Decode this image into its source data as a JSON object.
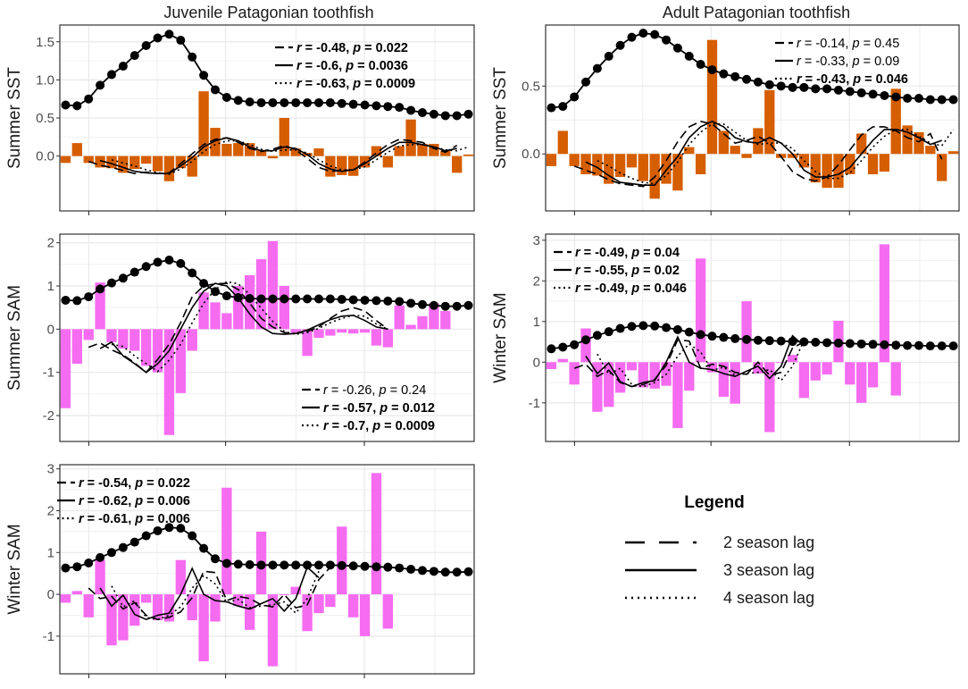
{
  "column_titles": [
    "Juvenile Patagonian toothfish",
    "Adult Patagonian toothfish"
  ],
  "colors": {
    "sst_bar": "#D55E00",
    "sam_bar": "#F56CF0",
    "line": "#000000",
    "grid": "#EBEBEB",
    "panel_border": "#333333"
  },
  "legend": {
    "title": "Legend",
    "items": [
      {
        "label": "2 season lag",
        "style": "dashed"
      },
      {
        "label": "3 season lag",
        "style": "solid"
      },
      {
        "label": "4 season lag",
        "style": "dotted"
      }
    ]
  },
  "chart_data": [
    {
      "id": "p1",
      "type": "bar+line",
      "column": "Juvenile Patagonian toothfish",
      "ylabel": "Summer SST",
      "ylim": [
        -0.72,
        1.72
      ],
      "yticks": [
        -0.0,
        0.5,
        1.0,
        1.5
      ],
      "ytick_labels": [
        "0.0",
        "0.5",
        "1.0",
        "1.5"
      ],
      "bar_color": "#D55E00",
      "bars": [
        -0.09,
        0.17,
        -0.09,
        -0.15,
        -0.16,
        -0.22,
        -0.17,
        -0.1,
        -0.2,
        -0.33,
        -0.16,
        -0.27,
        0.85,
        0.37,
        0.16,
        0.17,
        0.17,
        0.08,
        -0.03,
        0.5,
        0.1,
        0.04,
        0.1,
        -0.27,
        -0.25,
        -0.26,
        -0.15,
        0.13,
        -0.15,
        0.13,
        0.48,
        0.16,
        0.16,
        0.07,
        -0.22,
        0.02
      ],
      "population": [
        0.67,
        0.66,
        0.75,
        0.93,
        1.07,
        1.18,
        1.32,
        1.45,
        1.55,
        1.6,
        1.52,
        1.3,
        1.06,
        0.87,
        0.77,
        0.73,
        0.71,
        0.7,
        0.7,
        0.7,
        0.7,
        0.7,
        0.7,
        0.7,
        0.69,
        0.68,
        0.67,
        0.66,
        0.65,
        0.64,
        0.6,
        0.57,
        0.55,
        0.53,
        0.53,
        0.55
      ],
      "lag2": [
        null,
        null,
        -0.07,
        -0.12,
        -0.15,
        -0.19,
        -0.23,
        -0.21,
        -0.23,
        -0.22,
        -0.1,
        0.03,
        0.15,
        0.22,
        0.24,
        0.18,
        0.1,
        0.06,
        0.09,
        0.14,
        0.08,
        -0.03,
        -0.15,
        -0.2,
        -0.19,
        -0.18,
        -0.08,
        0.04,
        0.15,
        0.22,
        0.2,
        0.18,
        0.1,
        0.05,
        0.14,
        null
      ],
      "lag3": [
        null,
        null,
        null,
        -0.06,
        -0.1,
        -0.15,
        -0.2,
        -0.22,
        -0.23,
        -0.23,
        -0.13,
        -0.02,
        0.12,
        0.2,
        0.24,
        0.2,
        0.12,
        0.07,
        0.07,
        0.12,
        0.1,
        0.02,
        -0.1,
        -0.17,
        -0.2,
        -0.18,
        -0.1,
        0.0,
        0.1,
        0.18,
        0.18,
        0.15,
        0.12,
        0.07,
        0.1,
        null
      ],
      "lag4": [
        null,
        null,
        null,
        null,
        -0.05,
        -0.09,
        -0.13,
        -0.18,
        -0.22,
        -0.24,
        -0.17,
        -0.07,
        0.06,
        0.15,
        0.2,
        0.2,
        0.15,
        0.09,
        0.06,
        0.08,
        0.08,
        0.04,
        -0.05,
        -0.13,
        -0.18,
        -0.18,
        -0.14,
        -0.05,
        0.05,
        0.13,
        0.15,
        0.15,
        0.12,
        0.08,
        0.07,
        0.12
      ],
      "annotations": [
        {
          "pos": "top-right",
          "lines": [
            {
              "r": "-0.48",
              "p": "0.022",
              "bold": true
            },
            {
              "r": "-0.6",
              "p": "0.0036",
              "bold": true
            },
            {
              "r": "-0.63",
              "p": "0.0009",
              "bold": true
            }
          ]
        }
      ]
    },
    {
      "id": "p2",
      "type": "bar+line",
      "column": "Adult Patagonian toothfish",
      "ylabel": "Summer SST",
      "ylim": [
        -0.42,
        0.95
      ],
      "yticks": [
        -0.0,
        0.5
      ],
      "ytick_labels": [
        "0.0",
        "0.5"
      ],
      "bar_color": "#D55E00",
      "bars": [
        -0.09,
        0.17,
        -0.09,
        -0.15,
        -0.16,
        -0.22,
        -0.17,
        -0.1,
        -0.2,
        -0.33,
        -0.22,
        -0.27,
        0.05,
        -0.15,
        0.84,
        0.17,
        0.06,
        -0.03,
        0.19,
        0.47,
        -0.03,
        -0.03,
        -0.1,
        -0.21,
        -0.25,
        -0.25,
        -0.15,
        0.15,
        -0.15,
        -0.13,
        0.48,
        0.21,
        0.16,
        0.06,
        -0.2,
        0.02
      ],
      "population": [
        0.34,
        0.35,
        0.42,
        0.53,
        0.63,
        0.72,
        0.8,
        0.86,
        0.89,
        0.88,
        0.84,
        0.78,
        0.72,
        0.66,
        0.62,
        0.59,
        0.57,
        0.55,
        0.53,
        0.51,
        0.5,
        0.49,
        0.49,
        0.48,
        0.48,
        0.47,
        0.46,
        0.45,
        0.44,
        0.43,
        0.42,
        0.41,
        0.41,
        0.4,
        0.4,
        0.4
      ],
      "lag2": [
        null,
        null,
        -0.09,
        -0.12,
        -0.15,
        -0.19,
        -0.22,
        -0.23,
        -0.24,
        -0.17,
        -0.05,
        0.09,
        0.2,
        0.24,
        0.22,
        0.15,
        0.08,
        0.1,
        0.13,
        0.08,
        -0.02,
        -0.13,
        -0.18,
        -0.2,
        -0.17,
        -0.08,
        0.03,
        0.14,
        0.2,
        0.2,
        0.17,
        0.12,
        0.09,
        0.15,
        -0.04,
        null
      ],
      "lag3": [
        null,
        null,
        null,
        -0.06,
        -0.1,
        -0.16,
        -0.21,
        -0.22,
        -0.23,
        -0.23,
        -0.12,
        -0.02,
        0.12,
        0.2,
        0.24,
        0.2,
        0.12,
        0.09,
        0.08,
        0.12,
        0.08,
        0.0,
        -0.12,
        -0.17,
        -0.17,
        -0.15,
        -0.1,
        0.0,
        0.1,
        0.18,
        0.18,
        0.16,
        0.12,
        0.07,
        0.1,
        null
      ],
      "lag4": [
        null,
        null,
        null,
        null,
        -0.05,
        -0.09,
        -0.14,
        -0.18,
        -0.21,
        -0.22,
        -0.16,
        -0.06,
        0.07,
        0.16,
        0.22,
        0.22,
        0.16,
        0.1,
        0.07,
        0.08,
        0.08,
        0.04,
        -0.05,
        -0.13,
        -0.18,
        -0.18,
        -0.14,
        -0.05,
        0.05,
        0.13,
        0.18,
        0.18,
        0.13,
        0.08,
        0.06,
        0.18
      ],
      "annotations": [
        {
          "pos": "top-right",
          "lines": [
            {
              "r": "-0.14",
              "p": "0.45",
              "bold": false
            },
            {
              "r": "-0.33",
              "p": "0.09",
              "bold": false
            },
            {
              "r": "-0.43",
              "p": "0.046",
              "bold": true
            }
          ]
        }
      ]
    },
    {
      "id": "p3",
      "type": "bar+line",
      "column": "Juvenile Patagonian toothfish",
      "ylabel": "Summer SAM",
      "ylim": [
        -2.6,
        2.2
      ],
      "yticks": [
        -2,
        -1,
        0,
        1,
        2
      ],
      "ytick_labels": [
        "-2",
        "-1",
        "0",
        "1",
        "2"
      ],
      "bar_color": "#F56CF0",
      "bars": [
        -1.83,
        -0.8,
        -0.25,
        1.08,
        -0.3,
        -0.45,
        -0.5,
        -0.85,
        -1.0,
        -2.45,
        -1.48,
        -0.5,
        0.85,
        0.62,
        0.37,
        1.0,
        1.25,
        1.62,
        2.04,
        1.0,
        -0.1,
        -0.62,
        -0.2,
        -0.15,
        -0.08,
        -0.1,
        -0.08,
        -0.38,
        -0.42,
        0.55,
        0.1,
        0.3,
        0.6,
        0.42,
        0.0,
        0.0
      ],
      "population": [
        0.67,
        0.66,
        0.75,
        0.93,
        1.07,
        1.18,
        1.32,
        1.45,
        1.55,
        1.6,
        1.52,
        1.3,
        1.06,
        0.87,
        0.77,
        0.73,
        0.71,
        0.7,
        0.7,
        0.7,
        0.7,
        0.7,
        0.7,
        0.7,
        0.69,
        0.68,
        0.67,
        0.66,
        0.65,
        0.64,
        0.6,
        0.57,
        0.55,
        0.53,
        0.53,
        0.55
      ],
      "lag2": [
        null,
        null,
        -0.42,
        -0.32,
        -0.48,
        -0.6,
        -0.78,
        -1.0,
        -0.7,
        -0.35,
        0.15,
        0.75,
        1.0,
        1.05,
        1.06,
        0.92,
        0.6,
        0.25,
        0.05,
        -0.08,
        -0.1,
        -0.05,
        0.05,
        0.25,
        0.42,
        0.5,
        0.42,
        0.2,
        0.0,
        null,
        null,
        null,
        null,
        null,
        null,
        null
      ],
      "lag3": [
        null,
        null,
        null,
        -0.45,
        -0.3,
        -0.62,
        -0.8,
        -1.0,
        -0.8,
        -0.5,
        0.0,
        0.5,
        0.88,
        1.06,
        1.0,
        0.72,
        0.35,
        0.05,
        -0.1,
        -0.12,
        -0.1,
        -0.02,
        0.1,
        0.22,
        0.3,
        0.32,
        0.2,
        0.05,
        0.0,
        null,
        null,
        null,
        null,
        null,
        null,
        null
      ],
      "lag4": [
        null,
        null,
        null,
        null,
        -0.35,
        -0.4,
        -0.62,
        -0.8,
        -0.98,
        -0.72,
        -0.35,
        0.15,
        0.6,
        0.92,
        1.1,
        1.05,
        0.8,
        0.48,
        0.18,
        -0.05,
        -0.12,
        -0.08,
        0.02,
        0.15,
        0.25,
        0.32,
        0.3,
        0.12,
        0.0,
        null,
        null,
        null,
        null,
        null,
        null,
        null
      ],
      "annotations": [
        {
          "pos": "bottom-right",
          "lines": [
            {
              "r": "-0.26",
              "p": "0.24",
              "bold": false
            },
            {
              "r": "-0.57",
              "p": "0.012",
              "bold": true
            },
            {
              "r": "-0.7",
              "p": "0.0009",
              "bold": true
            }
          ]
        }
      ]
    },
    {
      "id": "p4",
      "type": "bar+line",
      "column": "Adult Patagonian toothfish",
      "ylabel": "Winter SAM",
      "ylim": [
        -1.95,
        3.15
      ],
      "yticks": [
        -1,
        0,
        1,
        2,
        3
      ],
      "ytick_labels": [
        "-1",
        "0",
        "1",
        "2",
        "3"
      ],
      "bar_color": "#F56CF0",
      "bars": [
        -0.17,
        0.08,
        -0.55,
        0.83,
        -1.22,
        -1.1,
        -0.75,
        -0.2,
        -0.62,
        -0.65,
        -0.58,
        -1.62,
        -0.7,
        2.55,
        -0.25,
        -0.85,
        -1.02,
        1.5,
        -0.28,
        -1.72,
        -0.02,
        0.18,
        -0.88,
        -0.45,
        -0.3,
        1.02,
        -0.55,
        -1.0,
        -0.62,
        2.9,
        -0.82,
        0.0,
        0.0,
        0.0,
        0.0,
        0.0
      ],
      "population": [
        0.33,
        0.37,
        0.43,
        0.55,
        0.66,
        0.75,
        0.83,
        0.88,
        0.9,
        0.89,
        0.85,
        0.8,
        0.74,
        0.68,
        0.64,
        0.61,
        0.58,
        0.56,
        0.54,
        0.53,
        0.52,
        0.51,
        0.5,
        0.49,
        0.48,
        0.47,
        0.46,
        0.45,
        0.44,
        0.43,
        0.42,
        0.41,
        0.41,
        0.4,
        0.4,
        0.4
      ],
      "lag2": [
        null,
        null,
        -0.15,
        -0.05,
        -0.35,
        -0.2,
        -0.5,
        -0.6,
        -0.55,
        -0.42,
        -0.08,
        0.55,
        0.52,
        -0.15,
        -0.05,
        -0.1,
        -0.25,
        -0.3,
        0.0,
        -0.32,
        -0.25,
        0.35,
        0.5,
        null,
        null,
        null,
        null,
        null,
        null,
        null,
        null,
        null,
        null,
        null,
        null,
        null
      ],
      "lag3": [
        null,
        null,
        null,
        0.15,
        -0.28,
        -0.02,
        -0.48,
        -0.6,
        -0.5,
        -0.45,
        0.0,
        0.62,
        0.0,
        -0.15,
        -0.18,
        -0.28,
        -0.35,
        -0.22,
        -0.1,
        -0.4,
        -0.1,
        0.65,
        0.4,
        null,
        null,
        null,
        null,
        null,
        null,
        null,
        null,
        null,
        null,
        null,
        null,
        null
      ],
      "lag4": [
        null,
        null,
        null,
        null,
        0.2,
        -0.3,
        -0.15,
        -0.55,
        -0.6,
        -0.5,
        -0.3,
        0.15,
        0.45,
        0.25,
        -0.2,
        -0.12,
        -0.32,
        -0.28,
        -0.25,
        -0.18,
        -0.45,
        -0.1,
        0.55,
        null,
        null,
        null,
        null,
        null,
        null,
        null,
        null,
        null,
        null,
        null,
        null,
        null
      ],
      "annotations": [
        {
          "pos": "top-left",
          "lines": [
            {
              "r": "-0.49",
              "p": "0.04",
              "bold": true
            },
            {
              "r": "-0.55",
              "p": "0.02",
              "bold": true
            },
            {
              "r": "-0.49",
              "p": "0.046",
              "bold": true
            }
          ]
        }
      ]
    },
    {
      "id": "p5",
      "type": "bar+line",
      "column": "Juvenile Patagonian toothfish",
      "ylabel": "Winter SAM",
      "ylim": [
        -1.9,
        3.1
      ],
      "yticks": [
        -1,
        0,
        1,
        2,
        3
      ],
      "ytick_labels": [
        "-1",
        "0",
        "1",
        "2",
        "3"
      ],
      "bar_color": "#F56CF0",
      "bars": [
        -0.2,
        0.08,
        -0.55,
        0.82,
        -1.22,
        -1.1,
        -0.75,
        -0.2,
        -0.62,
        -0.65,
        0.82,
        -0.62,
        -1.6,
        -0.65,
        2.55,
        -0.28,
        -0.85,
        1.5,
        -1.72,
        -0.02,
        0.18,
        -0.88,
        -0.45,
        -0.3,
        1.62,
        -0.55,
        -1.0,
        2.9,
        -0.82,
        0.0,
        0.0,
        0.0,
        0.0,
        0.0,
        0.0,
        0.0
      ],
      "population": [
        0.63,
        0.66,
        0.75,
        0.88,
        1.0,
        1.12,
        1.25,
        1.4,
        1.52,
        1.6,
        1.58,
        1.4,
        1.1,
        0.85,
        0.74,
        0.72,
        0.71,
        0.7,
        0.7,
        0.7,
        0.7,
        0.7,
        0.7,
        0.7,
        0.69,
        0.68,
        0.67,
        0.66,
        0.65,
        0.63,
        0.6,
        0.57,
        0.55,
        0.53,
        0.53,
        0.54
      ],
      "lag2": [
        null,
        null,
        0.15,
        -0.1,
        -0.05,
        -0.35,
        -0.2,
        -0.5,
        -0.6,
        -0.55,
        -0.42,
        -0.08,
        0.55,
        0.52,
        -0.15,
        -0.05,
        -0.1,
        -0.25,
        -0.3,
        0.0,
        -0.32,
        -0.25,
        0.35,
        0.65,
        null,
        null,
        null,
        null,
        null,
        null,
        null,
        null,
        null,
        null,
        null,
        null
      ],
      "lag3": [
        null,
        null,
        null,
        0.15,
        -0.28,
        -0.02,
        -0.48,
        -0.6,
        -0.5,
        -0.45,
        0.0,
        0.62,
        0.0,
        -0.15,
        -0.18,
        -0.28,
        -0.35,
        -0.22,
        -0.1,
        -0.4,
        -0.1,
        0.65,
        0.4,
        null,
        null,
        null,
        null,
        null,
        null,
        null,
        null,
        null,
        null,
        null,
        null,
        null
      ],
      "lag4": [
        null,
        null,
        null,
        null,
        0.2,
        -0.3,
        -0.15,
        -0.55,
        -0.6,
        -0.5,
        -0.3,
        0.15,
        0.45,
        0.25,
        -0.2,
        -0.12,
        -0.32,
        -0.28,
        -0.25,
        -0.18,
        -0.45,
        -0.1,
        0.55,
        null,
        null,
        null,
        null,
        null,
        null,
        null,
        null,
        null,
        null,
        null,
        null,
        null
      ],
      "annotations": [
        {
          "pos": "top-left",
          "lines": [
            {
              "r": "-0.54",
              "p": "0.022",
              "bold": true
            },
            {
              "r": "-0.62",
              "p": "0.006",
              "bold": true
            },
            {
              "r": "-0.61",
              "p": "0.006",
              "bold": true
            }
          ]
        }
      ]
    }
  ]
}
